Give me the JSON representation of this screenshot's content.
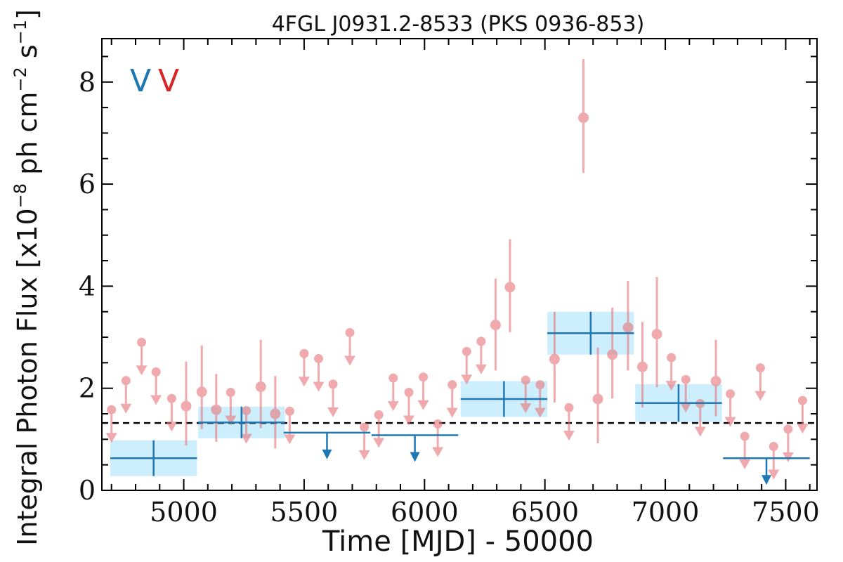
{
  "chart_data": {
    "type": "scatter",
    "title": "4FGL J0931.2-8533 (PKS 0936-853)",
    "xlabel": "Time [MJD] - 50000",
    "ylabel": "Integral Photon Flux [x10",
    "ylabel_exp1": "−8",
    "ylabel_mid": " ph cm",
    "ylabel_exp2": "−2",
    "ylabel_end": " s",
    "ylabel_exp3": "−1",
    "ylabel_close": "]",
    "xlim": [
      4660,
      7630
    ],
    "ylim": [
      0,
      8.85
    ],
    "x_ticks": [
      5000,
      5500,
      6000,
      6500,
      7000,
      7500
    ],
    "x_tick_labels": [
      "5000",
      "5500",
      "6000",
      "6500",
      "7000",
      "7500"
    ],
    "y_ticks": [
      0,
      2,
      4,
      6,
      8
    ],
    "y_tick_labels": [
      "0",
      "2",
      "4",
      "6",
      "8"
    ],
    "legend": [
      {
        "text": "V",
        "color": "#1f77b4"
      },
      {
        "text": "V",
        "color": "#d62728"
      }
    ],
    "reference_line": {
      "y": 1.32,
      "style": "dashed",
      "color": "#000000"
    },
    "series": [
      {
        "color": "#1f77b4",
        "band_color": "#cdeefc",
        "detections": [
          {
            "x": 4875,
            "x_half": 180,
            "y": 0.63,
            "y_err": 0.35
          },
          {
            "x": 5240,
            "x_half": 180,
            "y": 1.33,
            "y_err": 0.31
          },
          {
            "x": 6330,
            "x_half": 180,
            "y": 1.79,
            "y_err": 0.35
          },
          {
            "x": 6690,
            "x_half": 180,
            "y": 3.08,
            "y_err": 0.42
          },
          {
            "x": 7055,
            "x_half": 180,
            "y": 1.71,
            "y_err": 0.37
          }
        ],
        "upper_limits": [
          {
            "x": 5595,
            "x_half": 180,
            "y": 1.13
          },
          {
            "x": 5960,
            "x_half": 180,
            "y": 1.08
          },
          {
            "x": 7420,
            "x_half": 180,
            "y": 0.63
          }
        ]
      },
      {
        "color": "#e8777c",
        "detections": [
          {
            "x": 5010,
            "y": 1.65,
            "y_lo": 0.88,
            "y_hi": 2.52
          },
          {
            "x": 5075,
            "y": 1.93,
            "y_lo": 1.2,
            "y_hi": 2.84
          },
          {
            "x": 5135,
            "y": 1.58,
            "y_lo": 0.95,
            "y_hi": 2.28
          },
          {
            "x": 5320,
            "y": 2.03,
            "y_lo": 1.22,
            "y_hi": 2.95
          },
          {
            "x": 5380,
            "y": 1.5,
            "y_lo": 0.82,
            "y_hi": 2.24
          },
          {
            "x": 6295,
            "y": 3.24,
            "y_lo": 2.35,
            "y_hi": 4.15
          },
          {
            "x": 6355,
            "y": 3.98,
            "y_lo": 3.1,
            "y_hi": 4.92
          },
          {
            "x": 6540,
            "y": 2.57,
            "y_lo": 1.72,
            "y_hi": 3.5
          },
          {
            "x": 6660,
            "y": 7.3,
            "y_lo": 6.22,
            "y_hi": 8.45
          },
          {
            "x": 6720,
            "y": 1.79,
            "y_lo": 0.92,
            "y_hi": 2.8
          },
          {
            "x": 6780,
            "y": 2.66,
            "y_lo": 1.8,
            "y_hi": 3.58
          },
          {
            "x": 6845,
            "y": 3.19,
            "y_lo": 2.35,
            "y_hi": 4.1
          },
          {
            "x": 6905,
            "y": 2.42,
            "y_lo": 1.62,
            "y_hi": 3.3
          },
          {
            "x": 6965,
            "y": 3.06,
            "y_lo": 2.02,
            "y_hi": 4.18
          },
          {
            "x": 7210,
            "y": 2.14,
            "y_lo": 1.45,
            "y_hi": 2.95
          }
        ],
        "upper_limits": [
          {
            "x": 4700,
            "y": 1.58
          },
          {
            "x": 4760,
            "y": 2.15
          },
          {
            "x": 4825,
            "y": 2.9
          },
          {
            "x": 4885,
            "y": 2.32
          },
          {
            "x": 4950,
            "y": 1.8
          },
          {
            "x": 5195,
            "y": 1.92
          },
          {
            "x": 5260,
            "y": 1.56
          },
          {
            "x": 5440,
            "y": 1.55
          },
          {
            "x": 5500,
            "y": 2.68
          },
          {
            "x": 5560,
            "y": 2.58
          },
          {
            "x": 5620,
            "y": 2.08
          },
          {
            "x": 5690,
            "y": 3.09
          },
          {
            "x": 5750,
            "y": 1.24
          },
          {
            "x": 5810,
            "y": 1.48
          },
          {
            "x": 5870,
            "y": 2.2
          },
          {
            "x": 5935,
            "y": 1.92
          },
          {
            "x": 5995,
            "y": 2.22
          },
          {
            "x": 6055,
            "y": 1.3
          },
          {
            "x": 6115,
            "y": 2.07
          },
          {
            "x": 6175,
            "y": 2.72
          },
          {
            "x": 6235,
            "y": 2.92
          },
          {
            "x": 6420,
            "y": 2.16
          },
          {
            "x": 6480,
            "y": 2.07
          },
          {
            "x": 6600,
            "y": 1.62
          },
          {
            "x": 7025,
            "y": 2.6
          },
          {
            "x": 7085,
            "y": 2.17
          },
          {
            "x": 7145,
            "y": 1.7
          },
          {
            "x": 7270,
            "y": 1.89
          },
          {
            "x": 7330,
            "y": 1.06
          },
          {
            "x": 7395,
            "y": 2.4
          },
          {
            "x": 7450,
            "y": 0.86
          },
          {
            "x": 7510,
            "y": 1.2
          },
          {
            "x": 7570,
            "y": 1.76
          }
        ]
      }
    ]
  }
}
